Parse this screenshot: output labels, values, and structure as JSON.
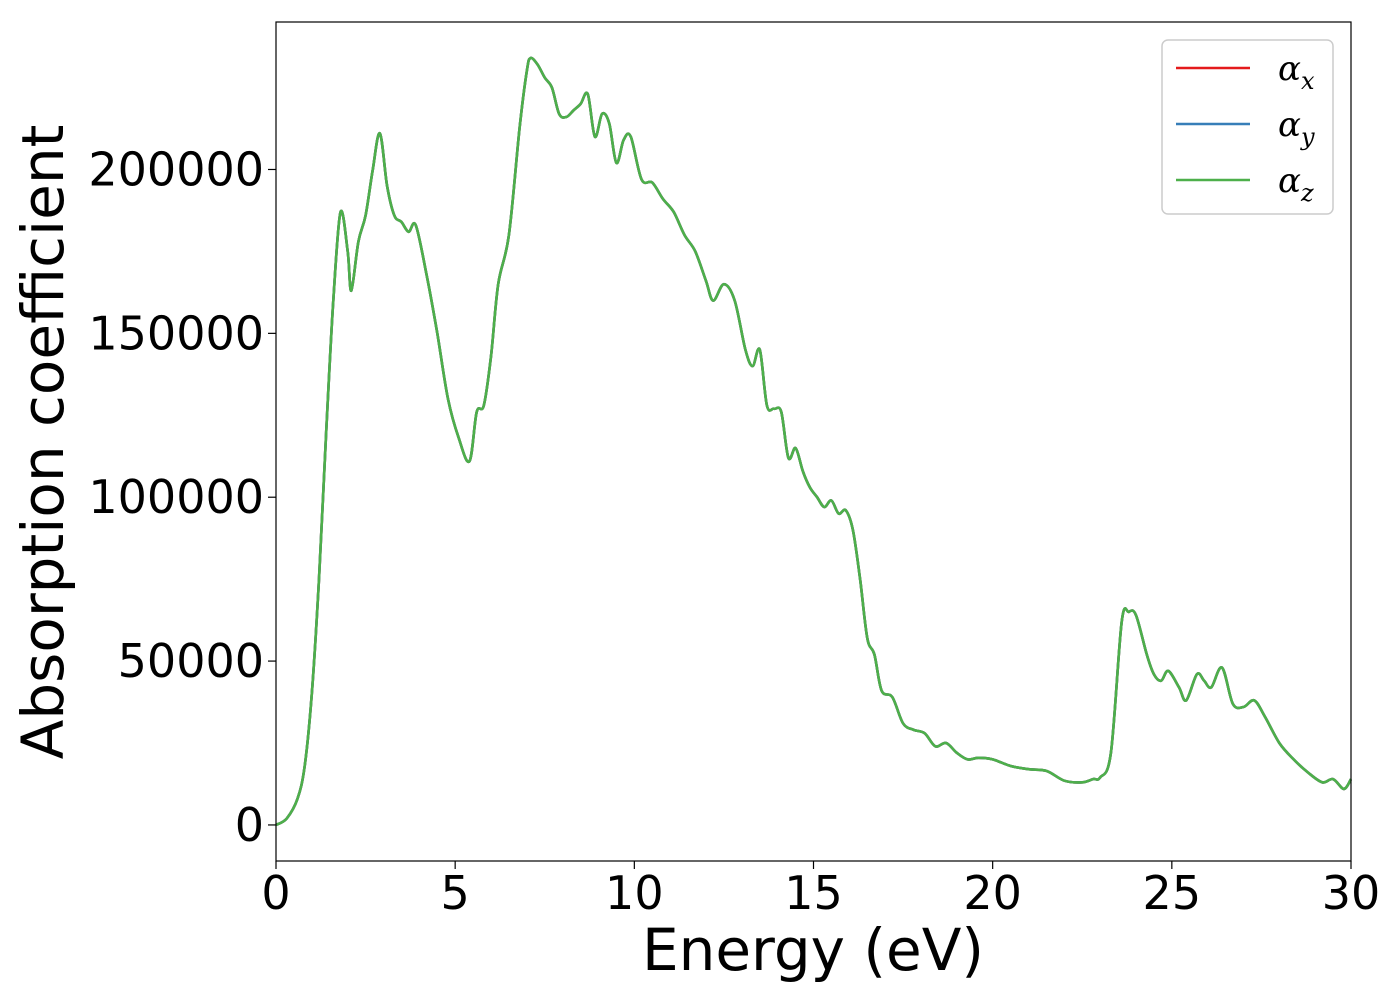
{
  "chart_data": {
    "type": "line",
    "title": "",
    "xlabel": "Energy (eV)",
    "ylabel": "Absorption coefficient",
    "xlim": [
      0,
      30
    ],
    "ylim": [
      -11000,
      245000
    ],
    "xticks": [
      0,
      5,
      10,
      15,
      20,
      25,
      30
    ],
    "xtick_labels": [
      "0",
      "5",
      "10",
      "15",
      "20",
      "25",
      "30"
    ],
    "yticks": [
      0,
      50000,
      100000,
      150000,
      200000
    ],
    "ytick_labels": [
      "0",
      "50000",
      "100000",
      "150000",
      "200000"
    ],
    "grid": false,
    "legend_position": "top-right",
    "colors": {
      "alpha_x": "#e41a1c",
      "alpha_y": "#377eb8",
      "alpha_z": "#4daf4a"
    },
    "x": [
      0,
      0.3,
      0.6,
      0.8,
      1.0,
      1.2,
      1.4,
      1.6,
      1.8,
      2.0,
      2.1,
      2.3,
      2.5,
      2.7,
      2.9,
      3.1,
      3.3,
      3.5,
      3.7,
      3.9,
      4.2,
      4.5,
      4.8,
      5.1,
      5.4,
      5.6,
      5.8,
      6.0,
      6.2,
      6.5,
      6.8,
      7.0,
      7.1,
      7.3,
      7.5,
      7.7,
      7.9,
      8.1,
      8.3,
      8.5,
      8.7,
      8.9,
      9.1,
      9.3,
      9.5,
      9.7,
      9.9,
      10.2,
      10.5,
      10.8,
      11.1,
      11.4,
      11.7,
      12.0,
      12.2,
      12.5,
      12.8,
      13.1,
      13.3,
      13.5,
      13.7,
      13.9,
      14.1,
      14.3,
      14.5,
      14.7,
      14.9,
      15.1,
      15.3,
      15.5,
      15.7,
      15.9,
      16.1,
      16.3,
      16.5,
      16.7,
      16.9,
      17.2,
      17.5,
      17.8,
      18.1,
      18.4,
      18.7,
      19.0,
      19.3,
      19.6,
      20.0,
      20.5,
      21.0,
      21.5,
      22.0,
      22.5,
      22.8,
      23.0,
      23.3,
      23.6,
      23.8,
      24.0,
      24.3,
      24.5,
      24.7,
      24.9,
      25.2,
      25.4,
      25.7,
      25.9,
      26.1,
      26.4,
      26.7,
      27.0,
      27.3,
      27.6,
      28.0,
      28.4,
      28.8,
      29.2,
      29.5,
      29.8,
      30.0
    ],
    "series": [
      {
        "name": "αx",
        "values": [
          0,
          2000,
          8000,
          18000,
          40000,
          75000,
          120000,
          160000,
          187000,
          175000,
          163000,
          178000,
          186000,
          200000,
          211000,
          195000,
          186000,
          184000,
          181000,
          183000,
          168000,
          150000,
          130000,
          118000,
          111000,
          126000,
          128000,
          143000,
          165000,
          180000,
          213000,
          230000,
          234000,
          232000,
          228000,
          225000,
          217000,
          216000,
          218000,
          220000,
          223000,
          210000,
          217000,
          214000,
          202000,
          209000,
          210000,
          197000,
          196000,
          191000,
          187000,
          180000,
          175000,
          166000,
          160000,
          165000,
          160000,
          145000,
          140000,
          145000,
          128000,
          127000,
          126000,
          112000,
          115000,
          108000,
          103000,
          100000,
          97000,
          99000,
          95000,
          96000,
          90000,
          75000,
          57000,
          52000,
          41000,
          39000,
          31000,
          29000,
          28000,
          24000,
          25000,
          22000,
          20000,
          20500,
          20000,
          18000,
          17000,
          16500,
          13500,
          13000,
          14000,
          14500,
          22000,
          62000,
          65000,
          64000,
          52000,
          46000,
          44000,
          47000,
          42000,
          38000,
          46000,
          44000,
          42000,
          48000,
          37000,
          36000,
          38000,
          33000,
          25000,
          20000,
          16000,
          13000,
          14000,
          11000,
          14000
        ]
      },
      {
        "name": "αy",
        "values": [
          0,
          2000,
          8000,
          18000,
          40000,
          75000,
          120000,
          160000,
          187000,
          175000,
          163000,
          178000,
          186000,
          200000,
          211000,
          195000,
          186000,
          184000,
          181000,
          183000,
          168000,
          150000,
          130000,
          118000,
          111000,
          126000,
          128000,
          143000,
          165000,
          180000,
          213000,
          230000,
          234000,
          232000,
          228000,
          225000,
          217000,
          216000,
          218000,
          220000,
          223000,
          210000,
          217000,
          214000,
          202000,
          209000,
          210000,
          197000,
          196000,
          191000,
          187000,
          180000,
          175000,
          166000,
          160000,
          165000,
          160000,
          145000,
          140000,
          145000,
          128000,
          127000,
          126000,
          112000,
          115000,
          108000,
          103000,
          100000,
          97000,
          99000,
          95000,
          96000,
          90000,
          75000,
          57000,
          52000,
          41000,
          39000,
          31000,
          29000,
          28000,
          24000,
          25000,
          22000,
          20000,
          20500,
          20000,
          18000,
          17000,
          16500,
          13500,
          13000,
          14000,
          14500,
          22000,
          62000,
          65000,
          64000,
          52000,
          46000,
          44000,
          47000,
          42000,
          38000,
          46000,
          44000,
          42000,
          48000,
          37000,
          36000,
          38000,
          33000,
          25000,
          20000,
          16000,
          13000,
          14000,
          11000,
          14000
        ]
      },
      {
        "name": "αz",
        "values": [
          0,
          2000,
          8000,
          18000,
          40000,
          75000,
          120000,
          160000,
          187000,
          175000,
          163000,
          178000,
          186000,
          200000,
          211000,
          195000,
          186000,
          184000,
          181000,
          183000,
          168000,
          150000,
          130000,
          118000,
          111000,
          126000,
          128000,
          143000,
          165000,
          180000,
          213000,
          230000,
          234000,
          232000,
          228000,
          225000,
          217000,
          216000,
          218000,
          220000,
          223000,
          210000,
          217000,
          214000,
          202000,
          209000,
          210000,
          197000,
          196000,
          191000,
          187000,
          180000,
          175000,
          166000,
          160000,
          165000,
          160000,
          145000,
          140000,
          145000,
          128000,
          127000,
          126000,
          112000,
          115000,
          108000,
          103000,
          100000,
          97000,
          99000,
          95000,
          96000,
          90000,
          75000,
          57000,
          52000,
          41000,
          39000,
          31000,
          29000,
          28000,
          24000,
          25000,
          22000,
          20000,
          20500,
          20000,
          18000,
          17000,
          16500,
          13500,
          13000,
          14000,
          14500,
          22000,
          62000,
          65000,
          64000,
          52000,
          46000,
          44000,
          47000,
          42000,
          38000,
          46000,
          44000,
          42000,
          48000,
          37000,
          36000,
          38000,
          33000,
          25000,
          20000,
          16000,
          13000,
          14000,
          11000,
          14000
        ]
      }
    ],
    "legend": [
      {
        "label": "α",
        "subscript": "x",
        "color_key": "alpha_x"
      },
      {
        "label": "α",
        "subscript": "y",
        "color_key": "alpha_y"
      },
      {
        "label": "α",
        "subscript": "z",
        "color_key": "alpha_z"
      }
    ]
  }
}
